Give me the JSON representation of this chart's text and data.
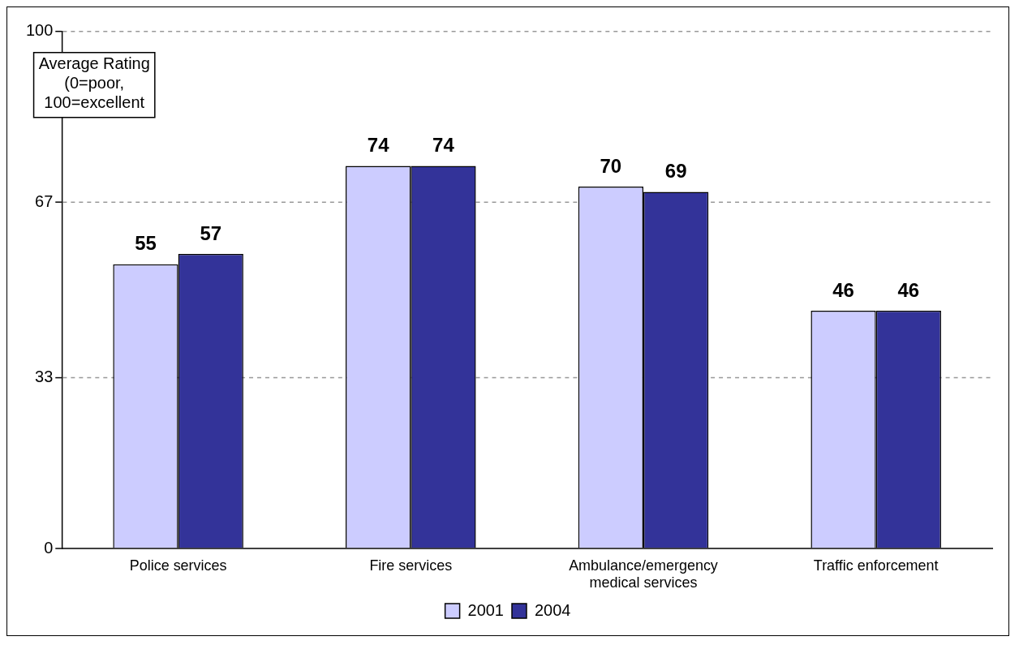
{
  "chart_data": {
    "type": "bar",
    "ylabel": "Average Rating (0=poor, 100=excellent",
    "categories": [
      "Police services",
      "Fire services",
      "Ambulance/emergency medical services",
      "Traffic enforcement"
    ],
    "series": [
      {
        "name": "2001",
        "color": "#ccccff",
        "values": [
          55,
          74,
          70,
          46
        ]
      },
      {
        "name": "2004",
        "color": "#333399",
        "values": [
          57,
          74,
          69,
          46
        ]
      }
    ],
    "ylim": [
      0,
      100
    ],
    "yticks": [
      0,
      33,
      67,
      100
    ],
    "grid": "y",
    "legend": "bottom",
    "data_labels": true
  }
}
